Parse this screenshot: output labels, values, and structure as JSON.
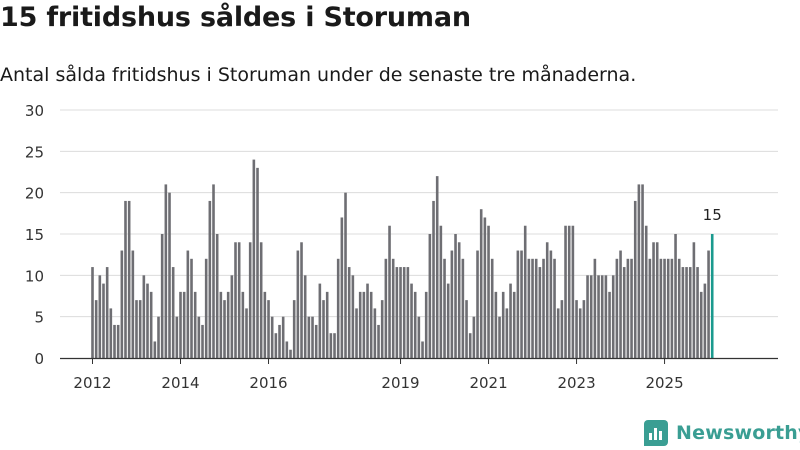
{
  "title": "15 fritidshus såldes i Storuman",
  "subtitle": "Antal sålda fritidshus i Storuman under de senaste tre månaderna.",
  "logo_text": "Newsworthy",
  "colors": {
    "bar": "#6e6e73",
    "highlight": "#1a9a8e",
    "grid": "#dcdcdc",
    "axis": "#333333",
    "brand": "#3a9e93"
  },
  "chart_data": {
    "type": "bar",
    "title": "15 fritidshus såldes i Storuman",
    "subtitle": "Antal sålda fritidshus i Storuman under de senaste tre månaderna.",
    "xlabel": "",
    "ylabel": "",
    "ylim": [
      0,
      30
    ],
    "yticks": [
      0,
      5,
      10,
      15,
      20,
      25,
      30
    ],
    "grid": true,
    "start_month": "2012-01",
    "xtick_labels": [
      {
        "label": "2012",
        "month": "2012-01"
      },
      {
        "label": "2014",
        "month": "2014-01"
      },
      {
        "label": "2016",
        "month": "2016-01"
      },
      {
        "label": "2019",
        "month": "2019-01"
      },
      {
        "label": "2021",
        "month": "2021-01"
      },
      {
        "label": "2023",
        "month": "2023-01"
      },
      {
        "label": "2025",
        "month": "2025-01"
      }
    ],
    "values": [
      11,
      7,
      10,
      9,
      11,
      6,
      4,
      4,
      13,
      19,
      19,
      13,
      7,
      7,
      10,
      9,
      8,
      2,
      5,
      15,
      21,
      20,
      11,
      5,
      8,
      8,
      13,
      12,
      8,
      5,
      4,
      12,
      19,
      21,
      15,
      8,
      7,
      8,
      10,
      14,
      14,
      8,
      6,
      14,
      24,
      23,
      14,
      8,
      7,
      5,
      3,
      4,
      5,
      2,
      1,
      7,
      13,
      14,
      10,
      5,
      5,
      4,
      9,
      7,
      8,
      3,
      3,
      12,
      17,
      20,
      11,
      10,
      6,
      8,
      8,
      9,
      8,
      6,
      4,
      7,
      12,
      16,
      12,
      11,
      11,
      11,
      11,
      9,
      8,
      5,
      2,
      8,
      15,
      19,
      22,
      16,
      12,
      9,
      13,
      15,
      14,
      12,
      7,
      3,
      5,
      13,
      18,
      17,
      16,
      12,
      8,
      5,
      8,
      6,
      9,
      8,
      13,
      13,
      16,
      12,
      12,
      12,
      11,
      12,
      14,
      13,
      12,
      6,
      7,
      16,
      16,
      16,
      7,
      6,
      7,
      10,
      10,
      12,
      10,
      10,
      10,
      8,
      10,
      12,
      13,
      11,
      12,
      12,
      19,
      21,
      21,
      16,
      12,
      14,
      14,
      12,
      12,
      12,
      12,
      15,
      12,
      11,
      11,
      11,
      14,
      11,
      8,
      9,
      13,
      15
    ],
    "highlight_last": true,
    "annotations": [
      {
        "text": "15",
        "target": "last_bar"
      }
    ]
  }
}
